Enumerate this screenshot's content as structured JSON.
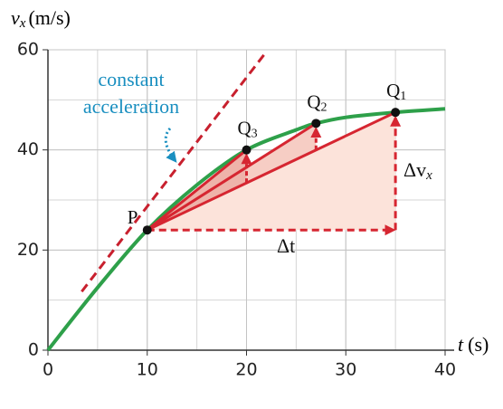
{
  "chart_data": {
    "type": "line",
    "y_label": {
      "symbol": "v",
      "sub": "x",
      "unit": "(m/s)"
    },
    "x_label": {
      "symbol": "t",
      "unit": "(s)"
    },
    "xlim": [
      0,
      40
    ],
    "ylim": [
      0,
      60
    ],
    "xticks": [
      0,
      10,
      20,
      30,
      40
    ],
    "yticks": [
      0,
      20,
      40,
      60
    ],
    "grid": true,
    "series": [
      {
        "name": "velocity",
        "color": "#2ea04a",
        "x": [
          0,
          5,
          10,
          15,
          20,
          25,
          27,
          30,
          35,
          40
        ],
        "values": [
          0,
          12.5,
          24,
          33,
          40,
          44,
          45.3,
          46.5,
          47.5,
          48.2
        ]
      }
    ],
    "tangent": {
      "x": [
        3.4,
        21.8
      ],
      "values": [
        11.7,
        59.1
      ],
      "color": "#c8202e"
    },
    "points": [
      {
        "name": "P",
        "x": 10,
        "y": 24
      },
      {
        "name": "Q",
        "sub": "3",
        "x": 20,
        "y": 40
      },
      {
        "name": "Q",
        "sub": "2",
        "x": 27,
        "y": 45.3
      },
      {
        "name": "Q",
        "sub": "1",
        "x": 35,
        "y": 47.5
      }
    ],
    "annotation": [
      "constant",
      "acceleration"
    ],
    "delta_t": "Δt",
    "delta_v": {
      "symbol": "Δv",
      "sub": "x"
    }
  }
}
